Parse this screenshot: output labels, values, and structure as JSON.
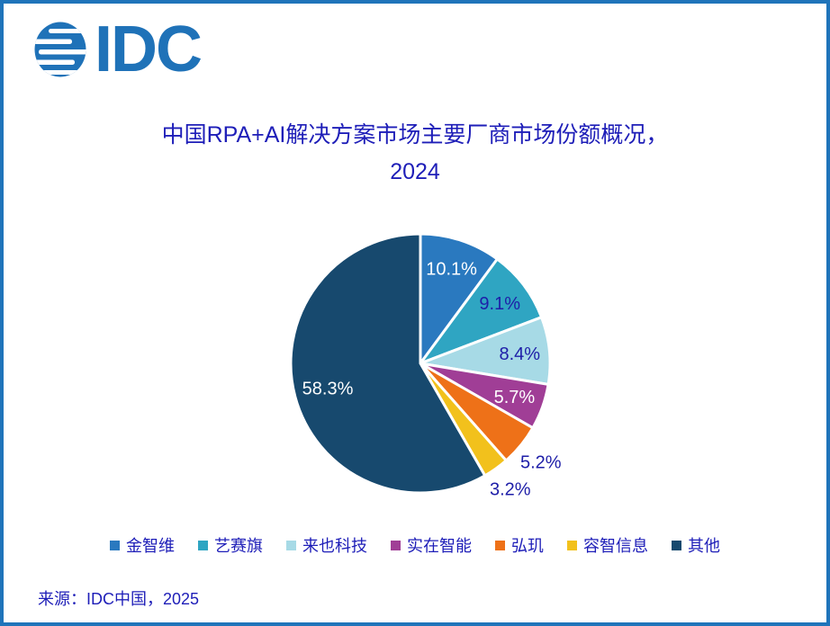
{
  "logo": {
    "text": "IDC",
    "color": "#1F72B8"
  },
  "title": {
    "line1": "中国RPA+AI解决方案市场主要厂商市场份额概况，",
    "line2": "2024",
    "color": "#1E1EB8"
  },
  "chart_data": {
    "type": "pie",
    "title": "中国RPA+AI解决方案市场主要厂商市场份额概况，2024",
    "start_angle_deg": 0,
    "direction": "clockwise",
    "legend_position": "bottom",
    "units": "percent",
    "segments": [
      {
        "id": "jinzhiwei",
        "name": "金智维",
        "value": 10.1,
        "label": "10.1%",
        "color": "#2A79BF",
        "label_color": "#FFFFFF",
        "label_radius": 0.77
      },
      {
        "id": "yisaiqi",
        "name": "艺赛旗",
        "value": 9.1,
        "label": "9.1%",
        "color": "#2FA5C2",
        "label_color": "#1E1EA8",
        "label_radius": 0.77
      },
      {
        "id": "laiye",
        "name": "来也科技",
        "value": 8.4,
        "label": "8.4%",
        "color": "#A7DAE6",
        "label_color": "#1E1EA8",
        "label_radius": 0.77
      },
      {
        "id": "shizai",
        "name": "实在智能",
        "value": 5.7,
        "label": "5.7%",
        "color": "#A03E96",
        "label_color": "#FFFFFF",
        "label_radius": 0.77
      },
      {
        "id": "hongji",
        "name": "弘玑",
        "value": 5.2,
        "label": "5.2%",
        "color": "#EE7118",
        "label_color": "#1E1EA8",
        "label_radius": 1.2
      },
      {
        "id": "rongzhi",
        "name": "容智信息",
        "value": 3.2,
        "label": "3.2%",
        "color": "#F2C11C",
        "label_color": "#1E1EA8",
        "label_radius": 1.19
      },
      {
        "id": "qita",
        "name": "其他",
        "value": 58.3,
        "label": "58.3%",
        "color": "#17496E",
        "label_color": "#FFFFFF",
        "label_radius": 0.74
      }
    ]
  },
  "source": {
    "text": "来源：IDC中国，2025"
  },
  "colors": {
    "navy_text": "#1E1EB8",
    "border_blue": "#1F74BA",
    "slice_gap_stroke": "#FFFFFF"
  }
}
